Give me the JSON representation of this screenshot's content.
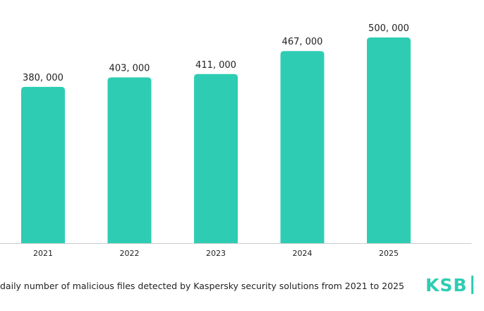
{
  "chart_data": {
    "type": "bar",
    "categories": [
      "2021",
      "2022",
      "2023",
      "2024",
      "2025"
    ],
    "values": [
      380000,
      403000,
      411000,
      467000,
      500000
    ],
    "value_labels": [
      "380, 000",
      "403, 000",
      "411, 000",
      "467, 000",
      "500, 000"
    ],
    "ylim": [
      0,
      500000
    ],
    "grid": false,
    "bar_color": "#2ecdb3"
  },
  "caption": "daily number of malicious files detected by Kaspersky security solutions from 2021 to 2025",
  "logo": {
    "text": "KSB",
    "color": "#2ecdb3"
  },
  "colors": {
    "axis": "#cccccc",
    "text": "#222222"
  }
}
